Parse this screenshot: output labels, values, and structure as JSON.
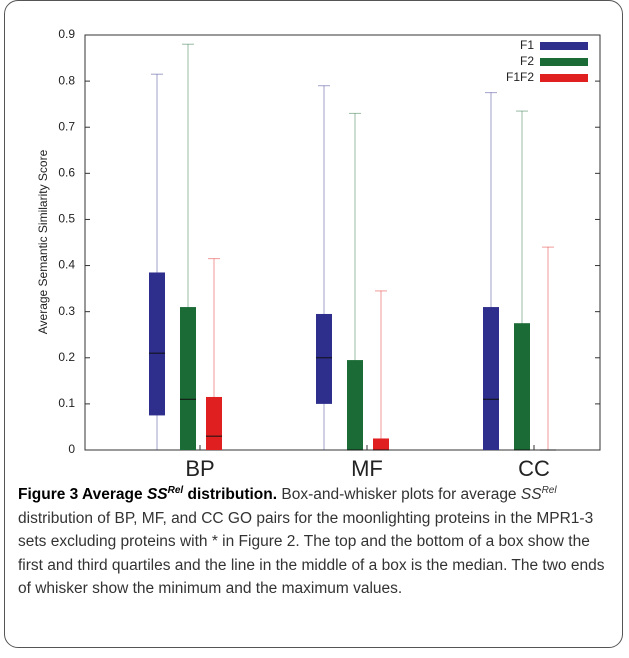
{
  "chart_data": {
    "type": "box",
    "ylabel": "Average Semantic Similarity Score",
    "categories": [
      "BP",
      "MF",
      "CC"
    ],
    "series": [
      {
        "name": "F1",
        "color": "#2e2e8c",
        "min": [
          0,
          0,
          0
        ],
        "q1": [
          0.075,
          0.1,
          0
        ],
        "median": [
          0.21,
          0.2,
          0.11
        ],
        "q3": [
          0.385,
          0.295,
          0.31
        ],
        "max": [
          0.815,
          0.79,
          0.775
        ]
      },
      {
        "name": "F2",
        "color": "#1a6b35",
        "min": [
          0,
          0,
          0
        ],
        "q1": [
          0,
          0,
          0
        ],
        "median": [
          0.11,
          0,
          0
        ],
        "q3": [
          0.31,
          0.195,
          0.275
        ],
        "max": [
          0.88,
          0.73,
          0.735
        ]
      },
      {
        "name": "F1F2",
        "color": "#e02020",
        "min": [
          0,
          0,
          0
        ],
        "q1": [
          0,
          0,
          0
        ],
        "median": [
          0.03,
          0,
          0
        ],
        "q3": [
          0.115,
          0.025,
          0
        ],
        "max": [
          0.415,
          0.345,
          0.44
        ]
      }
    ],
    "ylim": [
      0,
      0.9
    ],
    "yticks": [
      0,
      0.1,
      0.2,
      0.3,
      0.4,
      0.5,
      0.6,
      0.7,
      0.8,
      0.9
    ],
    "legend": "top-right"
  },
  "caption": {
    "title": [
      "Figure 3 Average ",
      "SS",
      "Rel",
      " distribution."
    ],
    "text": [
      "Box-and-whisker plots for average ",
      "SS",
      "Rel",
      " distribution of BP, MF, and CC GO pairs for the moonlighting proteins in the MPR1-3 sets excluding proteins with * in Figure 2. The top and the bottom of a box show the first and third quartiles and the line in the middle of a box is the median. The two ends of whisker show the minimum and the maximum values."
    ]
  }
}
